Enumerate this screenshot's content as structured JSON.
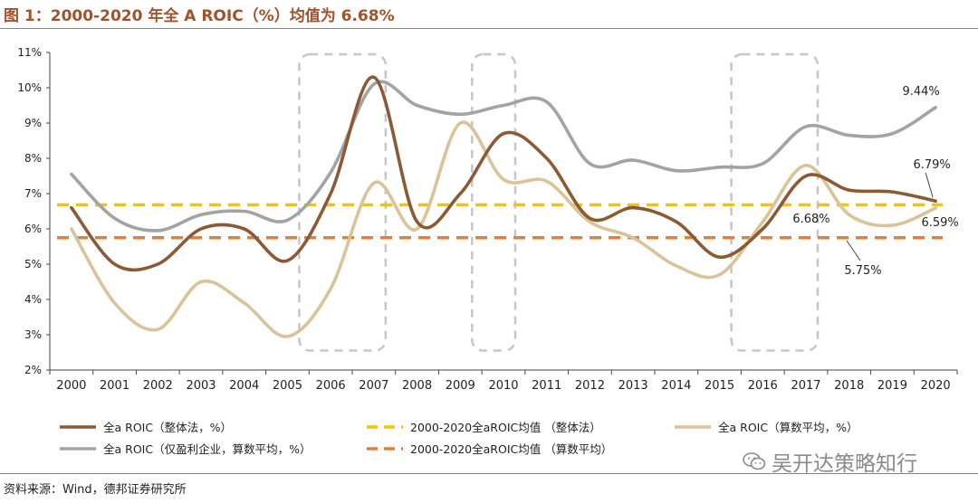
{
  "figure_title": "图 1：2000-2020 年全 A ROIC（%）均值为 6.68%",
  "source": "资料来源：Wind，德邦证券研究所",
  "watermark": "吴开达策略知行",
  "colors": {
    "whole": "#8b5a34",
    "avg": "#d9c397",
    "profit": "#a3a3a3",
    "mean_whole": "#f5c400",
    "mean_avg": "#e77e32",
    "box": "#c6c6c6"
  },
  "chart_data": {
    "type": "line",
    "title": "2000-2020 年全 A ROIC（%）均值为 6.68%",
    "x": [
      "2000",
      "2001",
      "2002",
      "2003",
      "2004",
      "2005",
      "2006",
      "2007",
      "2008",
      "2009",
      "2010",
      "2011",
      "2012",
      "2013",
      "2014",
      "2015",
      "2016",
      "2017",
      "2018",
      "2019",
      "2020"
    ],
    "ylim": [
      2,
      11
    ],
    "yticks": [
      "2%",
      "3%",
      "4%",
      "5%",
      "6%",
      "7%",
      "8%",
      "9%",
      "10%",
      "11%"
    ],
    "series": [
      {
        "name": "全a ROIC（整体法，%）",
        "key": "whole",
        "values": [
          6.6,
          5.0,
          5.0,
          6.0,
          6.0,
          5.1,
          7.0,
          10.3,
          6.2,
          7.0,
          8.7,
          8.0,
          6.3,
          6.6,
          6.2,
          5.2,
          6.0,
          7.5,
          7.1,
          7.05,
          6.79
        ]
      },
      {
        "name": "全a ROIC（算数平均，%）",
        "key": "avg",
        "values": [
          6.0,
          3.9,
          3.15,
          4.5,
          3.9,
          2.95,
          4.3,
          7.3,
          6.0,
          9.0,
          7.4,
          7.35,
          6.2,
          5.75,
          4.95,
          4.7,
          6.2,
          7.8,
          6.4,
          6.1,
          6.59
        ]
      },
      {
        "name": "全a ROIC（仅盈利企业，算数平均，%）",
        "key": "profit",
        "values": [
          7.55,
          6.3,
          5.95,
          6.4,
          6.5,
          6.25,
          7.6,
          10.1,
          9.5,
          9.25,
          9.5,
          9.6,
          7.85,
          7.95,
          7.65,
          7.75,
          7.85,
          8.9,
          8.65,
          8.7,
          9.44
        ]
      },
      {
        "name": "2000-2020全aROIC均值 （整体法）",
        "key": "mean_whole",
        "constant": 6.68
      },
      {
        "name": "2000-2020全aROIC均值 （算数平均）",
        "key": "mean_avg",
        "constant": 5.75
      }
    ],
    "annotations": [
      "9.44%",
      "6.79%",
      "6.68%",
      "6.59%",
      "5.75%"
    ],
    "highlight_periods": [
      [
        "2005",
        "2007"
      ],
      [
        "2009",
        "2010"
      ],
      [
        "2015",
        "2017"
      ]
    ],
    "legend": "bottom",
    "legend_rows": [
      [
        "whole",
        "mean_whole",
        "avg"
      ],
      [
        "profit",
        "mean_avg"
      ]
    ]
  }
}
